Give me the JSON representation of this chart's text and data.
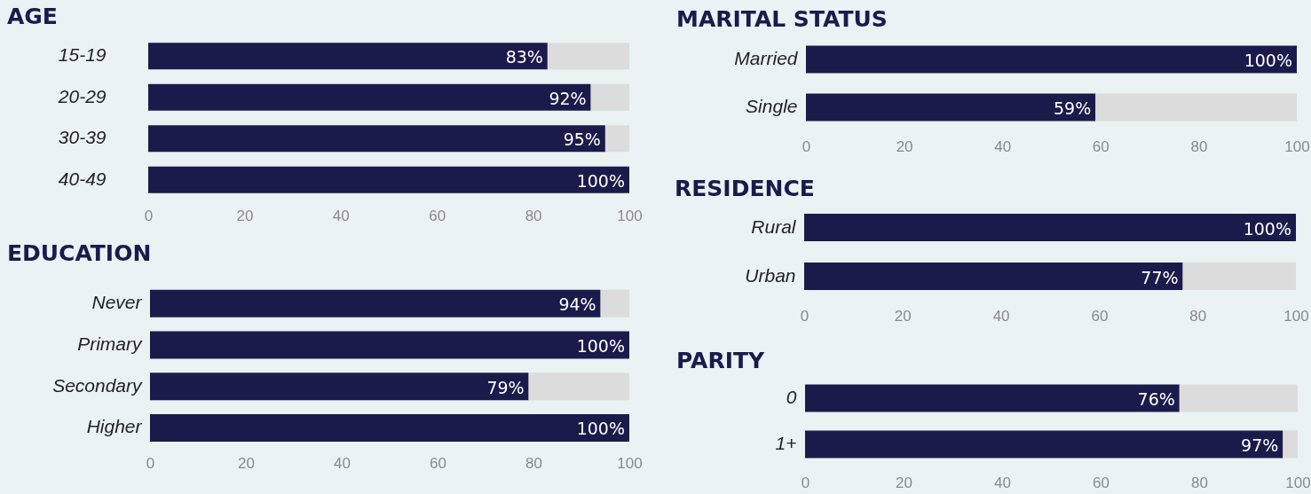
{
  "chart_data": [
    {
      "type": "bar",
      "orientation": "horizontal",
      "stacked": true,
      "title": "AGE",
      "categories": [
        "15-19",
        "20-29",
        "30-39",
        "40-49"
      ],
      "xlim": [
        0,
        100
      ],
      "xticks": [
        0,
        20,
        40,
        60,
        80,
        100
      ],
      "grid": false,
      "series": [
        {
          "color": "#1a1b4b",
          "values": [
            83,
            92,
            95,
            100
          ],
          "value_labels": [
            "83%",
            "92%",
            "95%",
            "100%"
          ]
        },
        {
          "color": "#dcdcdc",
          "values": [
            17,
            8,
            5,
            0
          ]
        }
      ]
    },
    {
      "type": "bar",
      "orientation": "horizontal",
      "stacked": true,
      "title": "EDUCATION",
      "categories": [
        "Never",
        "Primary",
        "Secondary",
        "Higher"
      ],
      "xlim": [
        0,
        100
      ],
      "xticks": [
        0,
        20,
        40,
        60,
        80,
        100
      ],
      "grid": false,
      "series": [
        {
          "color": "#1a1b4b",
          "values": [
            94,
            100,
            79,
            100
          ],
          "value_labels": [
            "94%",
            "100%",
            "79%",
            "100%"
          ]
        },
        {
          "color": "#dcdcdc",
          "values": [
            6,
            0,
            21,
            0
          ]
        }
      ]
    },
    {
      "type": "bar",
      "orientation": "horizontal",
      "stacked": true,
      "title": "MARITAL STATUS",
      "categories": [
        "Married",
        "Single"
      ],
      "xlim": [
        0,
        100
      ],
      "xticks": [
        0,
        20,
        40,
        60,
        80,
        100
      ],
      "grid": false,
      "series": [
        {
          "color": "#1a1b4b",
          "values": [
            100,
            59
          ],
          "value_labels": [
            "100%",
            "59%"
          ]
        },
        {
          "color": "#dcdcdc",
          "values": [
            0,
            41
          ]
        }
      ]
    },
    {
      "type": "bar",
      "orientation": "horizontal",
      "stacked": true,
      "title": "RESIDENCE",
      "categories": [
        "Rural",
        "Urban"
      ],
      "xlim": [
        0,
        100
      ],
      "xticks": [
        0,
        20,
        40,
        60,
        80,
        100
      ],
      "grid": false,
      "series": [
        {
          "color": "#1a1b4b",
          "values": [
            100,
            77
          ],
          "value_labels": [
            "100%",
            "77%"
          ]
        },
        {
          "color": "#dcdcdc",
          "values": [
            0,
            23
          ]
        }
      ]
    },
    {
      "type": "bar",
      "orientation": "horizontal",
      "stacked": true,
      "title": "PARITY",
      "categories": [
        "0",
        "1+"
      ],
      "xlim": [
        0,
        100
      ],
      "xticks": [
        0,
        20,
        40,
        60,
        80,
        100
      ],
      "grid": false,
      "series": [
        {
          "color": "#1a1b4b",
          "values": [
            76,
            97
          ],
          "value_labels": [
            "76%",
            "97%"
          ]
        },
        {
          "color": "#dcdcdc",
          "values": [
            24,
            3
          ]
        }
      ]
    }
  ]
}
